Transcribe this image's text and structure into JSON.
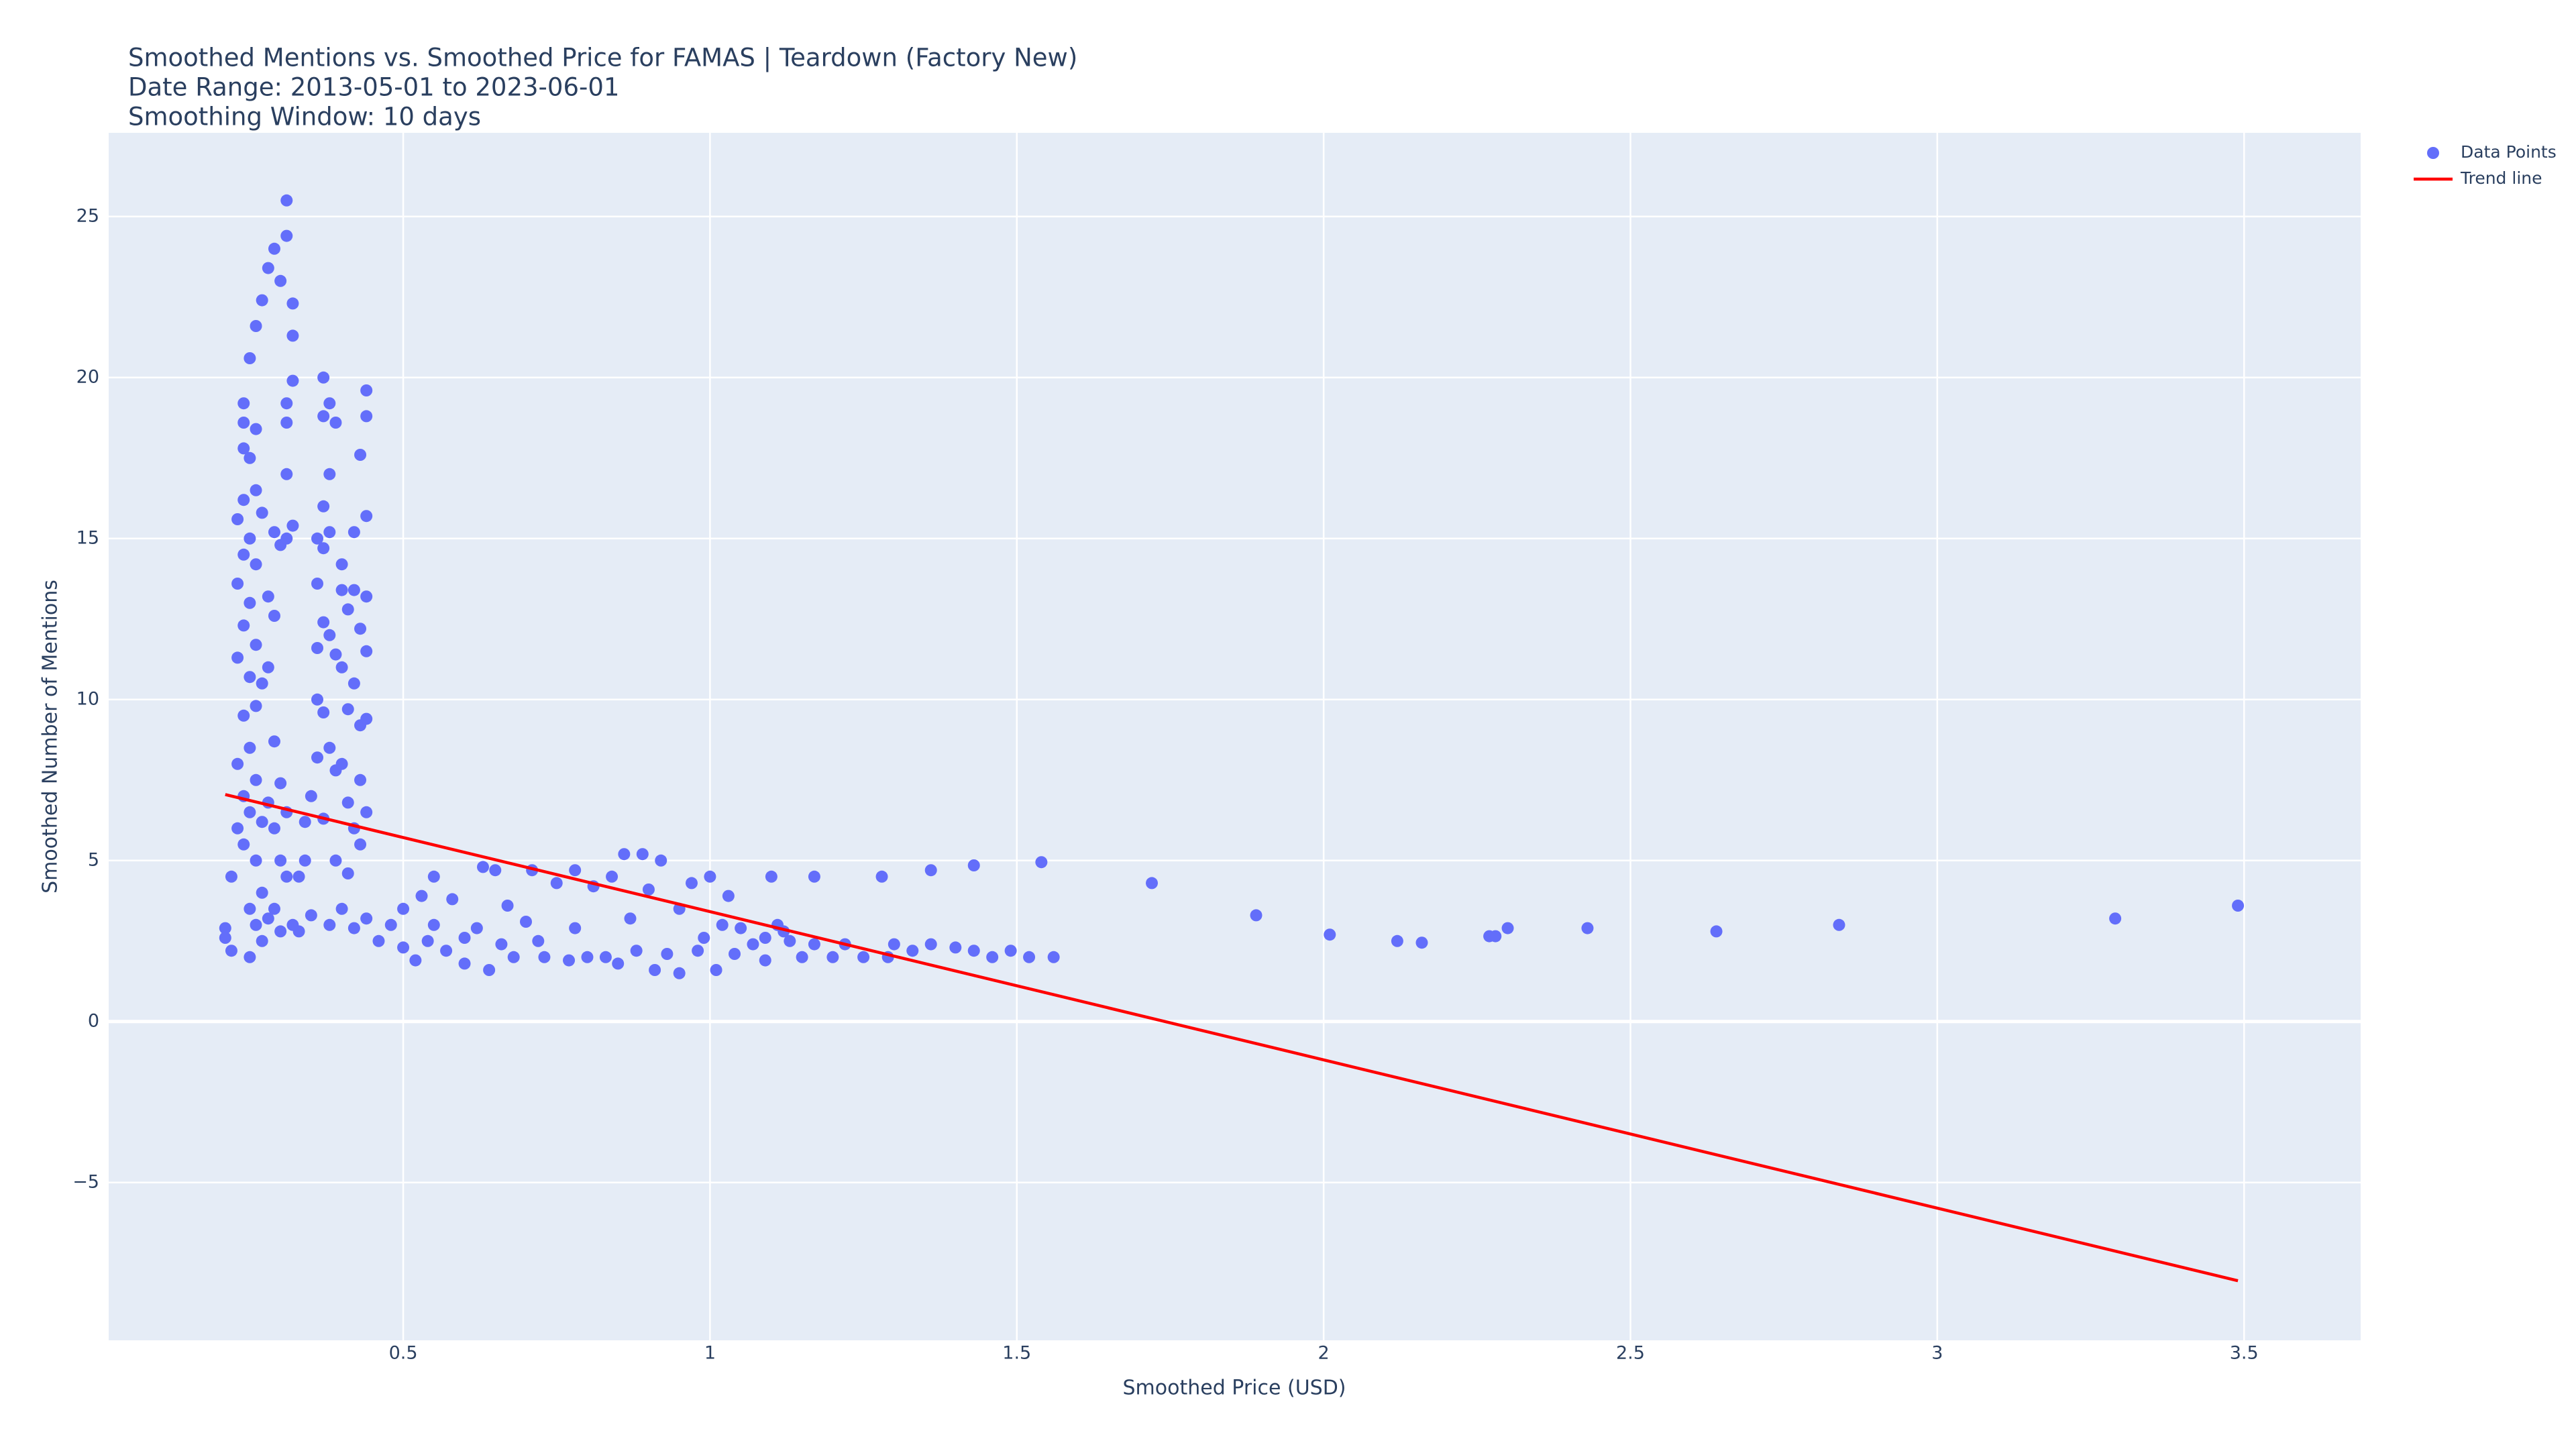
{
  "chart_data": {
    "type": "scatter",
    "title": [
      "Smoothed Mentions vs. Smoothed Price for FAMAS | Teardown (Factory New)",
      "Date Range: 2013-05-01 to 2023-06-01",
      "Smoothing Window: 10 days"
    ],
    "x_label": "Smoothed Price (USD)",
    "y_label": "Smoothed Number of Mentions",
    "xlim": [
      0.02,
      3.69
    ],
    "ylim": [
      -9.9,
      27.6
    ],
    "xticks": [
      0.5,
      1,
      1.5,
      2,
      2.5,
      3,
      3.5
    ],
    "yticks": [
      {
        "value": -5,
        "label": "−5"
      },
      0,
      5,
      10,
      15,
      20,
      25
    ],
    "grid": true,
    "legend": "right",
    "series": [
      {
        "name": "Data Points",
        "color": "#636efa",
        "mode": "markers",
        "x": [
          0.21,
          0.21,
          0.22,
          0.22,
          0.23,
          0.23,
          0.23,
          0.23,
          0.23,
          0.24,
          0.24,
          0.24,
          0.24,
          0.24,
          0.24,
          0.24,
          0.24,
          0.24,
          0.25,
          0.25,
          0.25,
          0.25,
          0.25,
          0.25,
          0.25,
          0.25,
          0.25,
          0.26,
          0.26,
          0.26,
          0.26,
          0.26,
          0.26,
          0.26,
          0.26,
          0.26,
          0.27,
          0.27,
          0.27,
          0.27,
          0.27,
          0.27,
          0.28,
          0.28,
          0.28,
          0.28,
          0.28,
          0.29,
          0.29,
          0.29,
          0.29,
          0.29,
          0.29,
          0.3,
          0.3,
          0.3,
          0.3,
          0.3,
          0.31,
          0.31,
          0.31,
          0.31,
          0.31,
          0.31,
          0.31,
          0.31,
          0.32,
          0.32,
          0.32,
          0.32,
          0.32,
          0.33,
          0.33,
          0.34,
          0.34,
          0.35,
          0.35,
          0.36,
          0.36,
          0.36,
          0.36,
          0.36,
          0.37,
          0.37,
          0.37,
          0.37,
          0.37,
          0.37,
          0.37,
          0.38,
          0.38,
          0.38,
          0.38,
          0.38,
          0.38,
          0.39,
          0.39,
          0.39,
          0.39,
          0.4,
          0.4,
          0.4,
          0.4,
          0.4,
          0.41,
          0.41,
          0.41,
          0.41,
          0.42,
          0.42,
          0.42,
          0.42,
          0.42,
          0.43,
          0.43,
          0.43,
          0.43,
          0.43,
          0.44,
          0.44,
          0.44,
          0.44,
          0.44,
          0.44,
          0.44,
          0.44,
          0.46,
          0.48,
          0.5,
          0.5,
          0.52,
          0.53,
          0.54,
          0.55,
          0.55,
          0.57,
          0.58,
          0.6,
          0.6,
          0.62,
          0.63,
          0.64,
          0.65,
          0.66,
          0.67,
          0.68,
          0.7,
          0.71,
          0.72,
          0.73,
          0.75,
          0.77,
          0.78,
          0.78,
          0.8,
          0.81,
          0.83,
          0.84,
          0.85,
          0.86,
          0.87,
          0.88,
          0.89,
          0.9,
          0.91,
          0.92,
          0.93,
          0.95,
          0.95,
          0.97,
          0.98,
          0.99,
          1.0,
          1.01,
          1.02,
          1.03,
          1.04,
          1.05,
          1.07,
          1.09,
          1.09,
          1.1,
          1.11,
          1.12,
          1.13,
          1.15,
          1.17,
          1.17,
          1.2,
          1.22,
          1.25,
          1.28,
          1.29,
          1.3,
          1.33,
          1.36,
          1.36,
          1.4,
          1.43,
          1.43,
          1.46,
          1.49,
          1.52,
          1.54,
          1.56,
          1.72,
          1.89,
          2.01,
          2.12,
          2.16,
          2.27,
          2.28,
          2.3,
          2.43,
          2.64,
          2.84,
          3.29,
          3.49
        ],
        "values": [
          2.9,
          2.6,
          2.2,
          4.5,
          6.0,
          8.0,
          11.3,
          13.6,
          15.6,
          17.8,
          19.2,
          18.6,
          16.2,
          14.5,
          12.3,
          9.5,
          7.0,
          5.5,
          20.6,
          17.5,
          15.0,
          13.0,
          10.7,
          8.5,
          6.5,
          3.5,
          2.0,
          21.6,
          18.4,
          16.5,
          14.2,
          11.7,
          9.8,
          7.5,
          5.0,
          3.0,
          22.4,
          15.8,
          10.5,
          6.2,
          4.0,
          2.5,
          23.4,
          13.2,
          11.0,
          6.8,
          3.2,
          24.0,
          15.2,
          12.6,
          8.7,
          6.0,
          3.5,
          23.0,
          14.8,
          7.4,
          5.0,
          2.8,
          25.5,
          24.4,
          19.2,
          18.6,
          17.0,
          15.0,
          6.5,
          4.5,
          22.3,
          21.3,
          19.9,
          15.4,
          3.0,
          4.5,
          2.8,
          6.2,
          5.0,
          3.3,
          7.0,
          13.6,
          11.6,
          10.0,
          8.2,
          15.0,
          20.0,
          18.8,
          16.0,
          14.7,
          12.4,
          9.6,
          6.3,
          19.2,
          17.0,
          15.2,
          12.0,
          8.5,
          3.0,
          18.6,
          11.4,
          7.8,
          5.0,
          14.2,
          13.4,
          11.0,
          8.0,
          3.5,
          12.8,
          9.7,
          6.8,
          4.6,
          15.2,
          13.4,
          10.5,
          6.0,
          2.9,
          17.6,
          12.2,
          9.2,
          7.5,
          5.5,
          19.6,
          18.8,
          15.7,
          13.2,
          11.5,
          9.4,
          6.5,
          3.2,
          2.5,
          3.0,
          3.5,
          2.3,
          1.9,
          3.9,
          2.5,
          4.5,
          3.0,
          2.2,
          3.8,
          2.6,
          1.8,
          2.9,
          4.8,
          1.6,
          4.7,
          2.4,
          3.6,
          2.0,
          3.1,
          4.7,
          2.5,
          2.0,
          4.3,
          1.9,
          4.7,
          2.9,
          2.0,
          4.2,
          2.0,
          4.5,
          1.8,
          5.2,
          3.2,
          2.2,
          5.2,
          4.1,
          1.6,
          5.0,
          2.1,
          3.5,
          1.5,
          4.3,
          2.2,
          2.6,
          4.5,
          1.6,
          3.0,
          3.9,
          2.1,
          2.9,
          2.4,
          2.6,
          1.9,
          4.5,
          3.0,
          2.8,
          2.5,
          2.0,
          4.5,
          2.4,
          2.0,
          2.4,
          2.0,
          4.5,
          2.0,
          2.4,
          2.2,
          4.7,
          2.4,
          2.3,
          4.85,
          2.2,
          2.0,
          2.2,
          2.0,
          4.95,
          2.0,
          4.3,
          3.3,
          2.7,
          2.5,
          2.45,
          2.65,
          2.65,
          2.9,
          2.9,
          2.8,
          3.0,
          3.2,
          3.6
        ]
      },
      {
        "name": "Trend line",
        "color": "#ff0000",
        "mode": "lines",
        "x": [
          0.21,
          3.49
        ],
        "values": [
          7.05,
          -8.05
        ]
      }
    ]
  }
}
